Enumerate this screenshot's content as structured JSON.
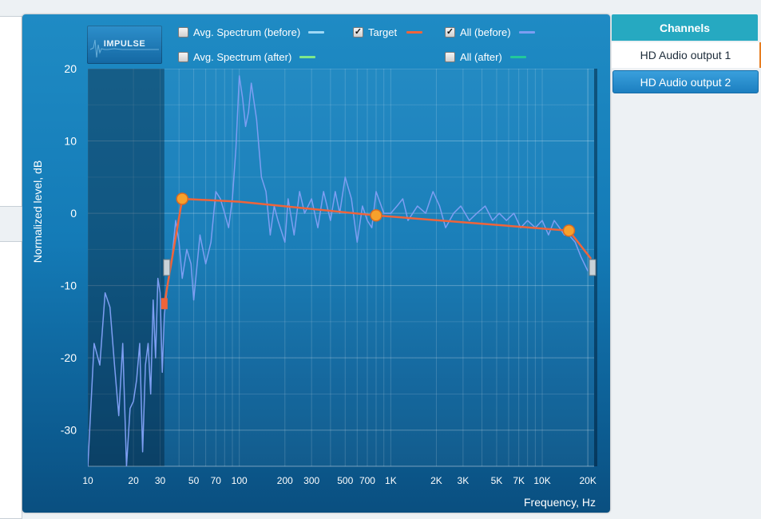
{
  "toolbar": {
    "impulse_label": "IMPULSE"
  },
  "legend": [
    {
      "id": "avg-before",
      "label": "Avg. Spectrum (before)",
      "checked": false,
      "color": "#9fd8f5"
    },
    {
      "id": "target",
      "label": "Target",
      "checked": true,
      "color": "#f0643a"
    },
    {
      "id": "all-before",
      "label": "All (before)",
      "checked": true,
      "color": "#7d9ef2"
    },
    {
      "id": "avg-after",
      "label": "Avg. Spectrum (after)",
      "checked": false,
      "color": "#7ee88a"
    },
    {
      "id": "all-after",
      "label": "All (after)",
      "checked": false,
      "color": "#22c99a"
    }
  ],
  "channels": {
    "header": "Channels",
    "items": [
      {
        "label": "HD Audio output 1",
        "selected": true
      },
      {
        "label": "HD Audio output 2",
        "selected": false
      }
    ]
  },
  "chart_data": {
    "type": "line",
    "xlabel": "Frequency, Hz",
    "ylabel": "Normalized level, dB",
    "xscale": "log",
    "xlim": [
      10,
      22000
    ],
    "ylim": [
      -35,
      20
    ],
    "x_ticks": [
      {
        "v": 10,
        "label": "10"
      },
      {
        "v": 20,
        "label": "20"
      },
      {
        "v": 30,
        "label": "30"
      },
      {
        "v": 50,
        "label": "50"
      },
      {
        "v": 70,
        "label": "70"
      },
      {
        "v": 100,
        "label": "100"
      },
      {
        "v": 200,
        "label": "200"
      },
      {
        "v": 300,
        "label": "300"
      },
      {
        "v": 500,
        "label": "500"
      },
      {
        "v": 700,
        "label": "700"
      },
      {
        "v": 1000,
        "label": "1K"
      },
      {
        "v": 2000,
        "label": "2K"
      },
      {
        "v": 3000,
        "label": "3K"
      },
      {
        "v": 5000,
        "label": "5K"
      },
      {
        "v": 7000,
        "label": "7K"
      },
      {
        "v": 10000,
        "label": "10K"
      },
      {
        "v": 20000,
        "label": "20K"
      }
    ],
    "y_ticks": [
      {
        "v": 20,
        "label": "20"
      },
      {
        "v": 10,
        "label": "10"
      },
      {
        "v": 0,
        "label": "0"
      },
      {
        "v": -10,
        "label": "-10"
      },
      {
        "v": -20,
        "label": "-20"
      },
      {
        "v": -30,
        "label": "-30"
      }
    ],
    "excluded_range_hz": [
      10,
      32
    ],
    "grid": true,
    "series": [
      {
        "name": "Target",
        "color": "#f0643a",
        "points": [
          [
            32,
            -12.5
          ],
          [
            42,
            2
          ],
          [
            100,
            1.6
          ],
          [
            800,
            -0.3
          ],
          [
            15000,
            -2.4
          ],
          [
            21000,
            -6.3
          ]
        ],
        "handles": [
          [
            42,
            2
          ],
          [
            800,
            -0.3
          ],
          [
            15000,
            -2.4
          ]
        ]
      },
      {
        "name": "All (before)",
        "color": "#7d9ef2",
        "points": [
          [
            10,
            -35
          ],
          [
            11,
            -18
          ],
          [
            12,
            -21
          ],
          [
            13,
            -11
          ],
          [
            14,
            -13
          ],
          [
            15,
            -21
          ],
          [
            16,
            -28
          ],
          [
            17,
            -18
          ],
          [
            18,
            -35
          ],
          [
            19,
            -27
          ],
          [
            20,
            -26
          ],
          [
            21,
            -23
          ],
          [
            22,
            -18
          ],
          [
            23,
            -33
          ],
          [
            24,
            -21
          ],
          [
            25,
            -18
          ],
          [
            26,
            -25
          ],
          [
            27,
            -12
          ],
          [
            28,
            -20
          ],
          [
            29,
            -9
          ],
          [
            30,
            -11
          ],
          [
            31,
            -22
          ],
          [
            32,
            -14
          ],
          [
            34,
            -9
          ],
          [
            36,
            -6
          ],
          [
            38,
            -1
          ],
          [
            40,
            -4
          ],
          [
            42,
            -9
          ],
          [
            45,
            -5
          ],
          [
            48,
            -7
          ],
          [
            50,
            -12
          ],
          [
            55,
            -3
          ],
          [
            60,
            -7
          ],
          [
            65,
            -4
          ],
          [
            70,
            3
          ],
          [
            75,
            2
          ],
          [
            80,
            0
          ],
          [
            85,
            -2
          ],
          [
            90,
            2
          ],
          [
            95,
            9
          ],
          [
            100,
            19
          ],
          [
            105,
            16
          ],
          [
            110,
            12
          ],
          [
            115,
            14
          ],
          [
            120,
            18
          ],
          [
            130,
            13
          ],
          [
            140,
            5
          ],
          [
            150,
            3
          ],
          [
            160,
            -3
          ],
          [
            170,
            1
          ],
          [
            180,
            -1
          ],
          [
            200,
            -4
          ],
          [
            210,
            2
          ],
          [
            230,
            -3
          ],
          [
            250,
            3
          ],
          [
            270,
            0
          ],
          [
            300,
            2
          ],
          [
            330,
            -2
          ],
          [
            360,
            3
          ],
          [
            400,
            -1
          ],
          [
            430,
            3
          ],
          [
            460,
            0
          ],
          [
            500,
            5
          ],
          [
            550,
            2
          ],
          [
            600,
            -4
          ],
          [
            650,
            1
          ],
          [
            700,
            -1
          ],
          [
            750,
            -2
          ],
          [
            800,
            3
          ],
          [
            900,
            0
          ],
          [
            1000,
            0
          ],
          [
            1100,
            1
          ],
          [
            1200,
            2
          ],
          [
            1300,
            -1
          ],
          [
            1500,
            1
          ],
          [
            1700,
            0
          ],
          [
            1900,
            3
          ],
          [
            2100,
            1
          ],
          [
            2300,
            -2
          ],
          [
            2600,
            0
          ],
          [
            2900,
            1
          ],
          [
            3300,
            -1
          ],
          [
            3700,
            0
          ],
          [
            4200,
            1
          ],
          [
            4700,
            -1
          ],
          [
            5200,
            0
          ],
          [
            5800,
            -1
          ],
          [
            6500,
            0
          ],
          [
            7200,
            -2
          ],
          [
            8000,
            -1
          ],
          [
            9000,
            -2
          ],
          [
            10000,
            -1
          ],
          [
            11000,
            -3
          ],
          [
            12000,
            -1
          ],
          [
            13000,
            -2
          ],
          [
            14000,
            -3
          ],
          [
            15000,
            -3
          ],
          [
            16500,
            -4
          ],
          [
            18000,
            -6
          ],
          [
            20000,
            -8
          ]
        ]
      }
    ]
  }
}
